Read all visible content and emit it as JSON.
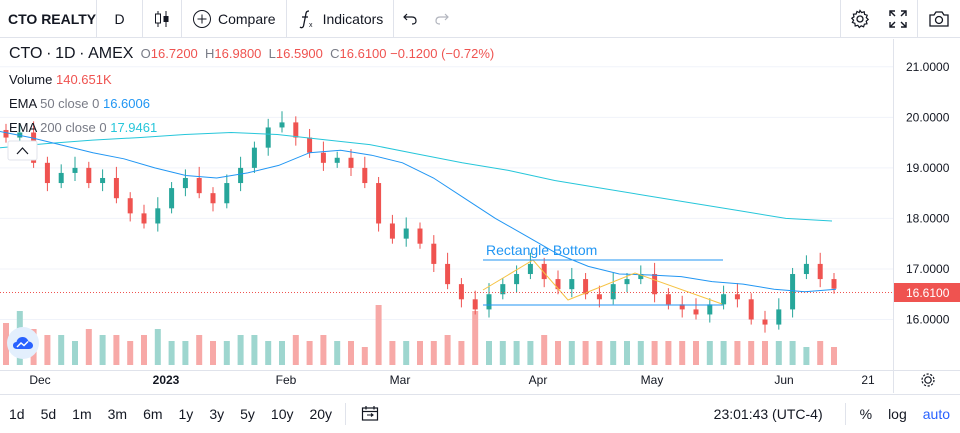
{
  "toolbar": {
    "symbol": "CTO REALTY",
    "interval": "D",
    "compare_label": "Compare",
    "indicators_label": "Indicators"
  },
  "legend": {
    "ticker": "CTO",
    "interval": "1D",
    "exchange": "AMEX",
    "open_label": "O",
    "open": "16.7200",
    "high_label": "H",
    "high": "16.9800",
    "low_label": "L",
    "low": "16.5900",
    "close_label": "C",
    "close": "16.6100",
    "change": "−0.1200 (−0.72%)",
    "volume_label": "Volume",
    "volume": "140.651K",
    "ema50_label": "EMA",
    "ema50_params": "50 close 0",
    "ema50_value": "16.6006",
    "ema200_label": "EMA",
    "ema200_params": "200 close 0",
    "ema200_value": "17.9461"
  },
  "annotation": {
    "label": "Rectangle Bottom"
  },
  "bottom": {
    "ranges": [
      "1d",
      "5d",
      "1m",
      "3m",
      "6m",
      "1y",
      "3y",
      "5y",
      "10y",
      "20y"
    ],
    "clock": "23:01:43 (UTC-4)",
    "percent": "%",
    "log": "log",
    "auto": "auto"
  },
  "colors": {
    "up": "#26a69a",
    "down": "#ef5350",
    "ema50": "#2196f3",
    "ema200": "#26c6da",
    "pattern": "#f6c343",
    "accent": "#2962ff"
  },
  "chart_data": {
    "type": "candlestick",
    "y_ticks": [
      "21.0000",
      "20.0000",
      "19.0000",
      "18.0000",
      "17.0000",
      "16.0000"
    ],
    "x_ticks": [
      "Dec",
      "2023",
      "Feb",
      "Mar",
      "Apr",
      "May",
      "Jun",
      "21"
    ],
    "last_price_label": "16.6100",
    "ylim": [
      15.1,
      21.55
    ],
    "ema50": [
      19.72,
      19.6,
      19.45,
      19.3,
      19.18,
      19.0,
      18.85,
      18.8,
      18.9,
      19.05,
      19.3,
      19.35,
      19.25,
      19.1,
      18.8,
      18.4,
      18.0,
      17.65,
      17.3,
      17.05,
      16.9,
      16.88,
      16.85,
      16.75,
      16.7,
      16.6,
      16.55,
      16.6
    ],
    "ema200": [
      19.4,
      19.48,
      19.55,
      19.6,
      19.66,
      19.7,
      19.66,
      19.56,
      19.46,
      19.28,
      19.1,
      18.95,
      18.75,
      18.6,
      18.45,
      18.3,
      18.15,
      18.0,
      17.95
    ],
    "closes": [
      19.6,
      19.7,
      19.1,
      18.7,
      18.9,
      19.0,
      18.7,
      18.8,
      18.4,
      18.1,
      17.9,
      18.2,
      18.6,
      18.8,
      18.5,
      18.3,
      18.7,
      19.0,
      19.4,
      19.8,
      19.9,
      19.6,
      19.3,
      19.1,
      19.2,
      19.0,
      18.7,
      17.9,
      17.6,
      17.8,
      17.5,
      17.1,
      16.7,
      16.4,
      16.2,
      16.5,
      16.7,
      16.9,
      17.1,
      16.8,
      16.6,
      16.8,
      16.5,
      16.4,
      16.7,
      16.8,
      16.9,
      16.5,
      16.3,
      16.2,
      16.1,
      16.3,
      16.5,
      16.4,
      16.0,
      15.9,
      16.2,
      16.9,
      17.1,
      16.8,
      16.61
    ],
    "volumes": [
      7,
      9,
      6,
      5,
      5,
      4,
      6,
      5,
      5,
      4,
      5,
      6,
      4,
      4,
      5,
      4,
      4,
      5,
      5,
      4,
      4,
      5,
      4,
      5,
      4,
      4,
      3,
      10,
      4,
      4,
      4,
      4,
      5,
      4,
      9,
      4,
      4,
      4,
      4,
      5,
      4,
      4,
      4,
      4,
      4,
      4,
      4,
      4,
      4,
      4,
      4,
      4,
      4,
      4,
      4,
      4,
      4,
      4,
      3,
      4,
      3
    ]
  }
}
